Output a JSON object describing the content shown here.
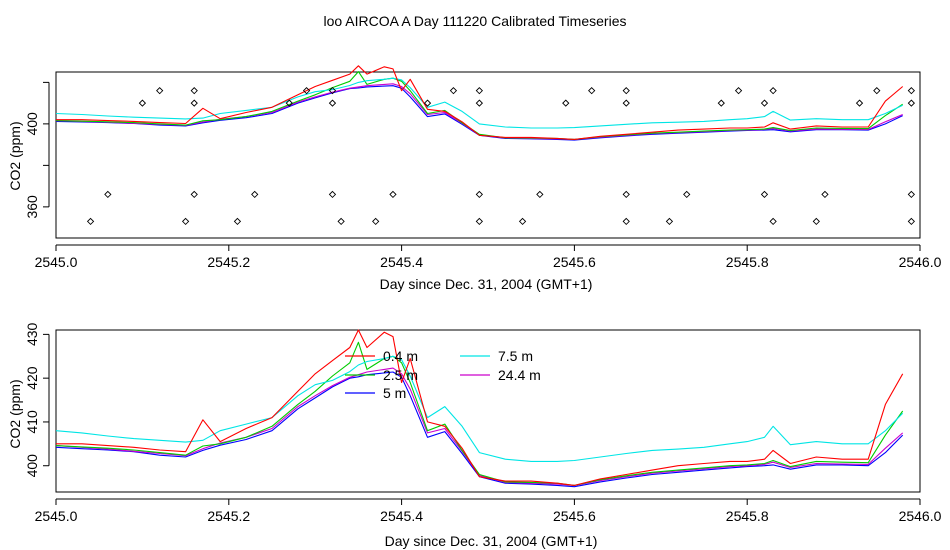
{
  "figure_title": "loo AIRCOA A  Day 111220  Calibrated Timeseries",
  "colors": {
    "0.4 m": "#ff0000",
    "2.5 m": "#00cc00",
    "5 m": "#0000ff",
    "7.5 m": "#00e5e5",
    "24.4 m": "#cc00cc"
  },
  "chart_data": [
    {
      "type": "line",
      "title": "",
      "xlabel": "Day since Dec. 31, 2004 (GMT+1)",
      "ylabel": "CO2 (ppm)",
      "xlim": [
        2545.0,
        2546.0
      ],
      "ylim": [
        345,
        425
      ],
      "xticks": [
        2545.0,
        2545.2,
        2545.4,
        2545.6,
        2545.8,
        2546.0
      ],
      "xtick_labels": [
        "2545.0",
        "2545.2",
        "2545.4",
        "2545.6",
        "2545.8",
        "2546.0"
      ],
      "yticks": [
        360,
        380,
        400,
        420
      ],
      "ytick_labels": [
        "360",
        "",
        "400",
        ""
      ],
      "legend": "none",
      "grid": false,
      "height_markers": {
        "description": "sampling-height marker points (open diamonds)",
        "rows": [
          {
            "y": 416,
            "x": [
              2545.12,
              2545.16,
              2545.29,
              2545.32,
              2545.46,
              2545.49,
              2545.62,
              2545.66,
              2545.79,
              2545.83,
              2545.95,
              2545.99
            ]
          },
          {
            "y": 410,
            "x": [
              2545.1,
              2545.16,
              2545.27,
              2545.32,
              2545.43,
              2545.49,
              2545.59,
              2545.66,
              2545.77,
              2545.82,
              2545.93,
              2545.99
            ]
          },
          {
            "y": 366,
            "x": [
              2545.06,
              2545.16,
              2545.23,
              2545.32,
              2545.39,
              2545.49,
              2545.56,
              2545.66,
              2545.73,
              2545.82,
              2545.89,
              2545.99
            ]
          },
          {
            "y": 353,
            "x": [
              2545.04,
              2545.15,
              2545.21,
              2545.33,
              2545.37,
              2545.49,
              2545.54,
              2545.66,
              2545.71,
              2545.83,
              2545.88,
              2545.99
            ]
          }
        ]
      }
    },
    {
      "type": "line",
      "title": "",
      "xlabel": "Day since Dec. 31, 2004 (GMT+1)",
      "ylabel": "CO2 (ppm)",
      "xlim": [
        2545.0,
        2546.0
      ],
      "ylim": [
        394,
        431
      ],
      "xticks": [
        2545.0,
        2545.2,
        2545.4,
        2545.6,
        2545.8,
        2546.0
      ],
      "xtick_labels": [
        "2545.0",
        "2545.2",
        "2545.4",
        "2545.6",
        "2545.8",
        "2546.0"
      ],
      "yticks": [
        400,
        410,
        420,
        430
      ],
      "ytick_labels": [
        "400",
        "410",
        "420",
        "430"
      ],
      "legend": "top-center",
      "grid": false,
      "x": [
        2545.0,
        2545.03,
        2545.06,
        2545.09,
        2545.12,
        2545.15,
        2545.17,
        2545.19,
        2545.22,
        2545.25,
        2545.28,
        2545.3,
        2545.32,
        2545.34,
        2545.35,
        2545.36,
        2545.38,
        2545.39,
        2545.4,
        2545.41,
        2545.43,
        2545.45,
        2545.47,
        2545.49,
        2545.52,
        2545.55,
        2545.58,
        2545.6,
        2545.63,
        2545.66,
        2545.69,
        2545.72,
        2545.75,
        2545.78,
        2545.8,
        2545.82,
        2545.83,
        2545.85,
        2545.88,
        2545.91,
        2545.94,
        2545.96,
        2545.98
      ],
      "series": [
        {
          "name": "0.4 m",
          "values": [
            405,
            405,
            404.6,
            404.2,
            403.6,
            403.2,
            410.5,
            405.5,
            408.5,
            411,
            417,
            421,
            424,
            427,
            431,
            427,
            430.5,
            429.5,
            419,
            424.5,
            410,
            409,
            404,
            397.5,
            396.5,
            396.5,
            396,
            395.5,
            397,
            398,
            399,
            400,
            400.5,
            401,
            401,
            401.5,
            403.5,
            400.5,
            402,
            401.5,
            401.5,
            414,
            421
          ]
        },
        {
          "name": "2.5 m",
          "values": [
            404.6,
            404.3,
            404,
            403.6,
            403,
            402.4,
            404.5,
            405,
            406.5,
            409,
            414,
            417,
            420.5,
            423.5,
            428.2,
            422,
            424.5,
            425,
            423.5,
            419,
            408,
            409.5,
            403.5,
            398,
            396.3,
            396.2,
            396,
            395.5,
            396.8,
            397.7,
            398.5,
            399,
            399.5,
            400,
            400.2,
            400.5,
            401.2,
            399.8,
            401,
            400.8,
            400.7,
            407,
            412.5
          ]
        },
        {
          "name": "5 m",
          "values": [
            404.2,
            403.9,
            403.6,
            403.2,
            402.4,
            402,
            403.5,
            404.7,
            406,
            408,
            413,
            415.5,
            418,
            420,
            420.3,
            420.8,
            421.2,
            421.4,
            420.2,
            416,
            406.5,
            407.8,
            402.8,
            397.5,
            396,
            395.8,
            395.5,
            395.2,
            396.3,
            397.2,
            398,
            398.5,
            399,
            399.5,
            399.8,
            400,
            400.2,
            399.2,
            400.2,
            400.2,
            400,
            403,
            407
          ]
        },
        {
          "name": "7.5 m",
          "values": [
            408,
            407.5,
            406.8,
            406.2,
            405.8,
            405.4,
            405.8,
            408,
            409.5,
            411,
            416,
            418.5,
            419.5,
            421.5,
            423,
            423.8,
            424.5,
            425,
            424.2,
            420.5,
            411,
            413.5,
            409,
            403,
            401.5,
            401,
            401,
            401.2,
            402,
            402.8,
            403.5,
            403.8,
            404.2,
            405,
            405.5,
            406.5,
            409,
            404.8,
            405.5,
            405,
            405,
            408,
            412
          ]
        },
        {
          "name": "24.4 m",
          "values": [
            404.6,
            404.2,
            403.8,
            403.3,
            402.8,
            402.3,
            403.9,
            405.2,
            406.5,
            408.5,
            413.5,
            416,
            418.3,
            420.2,
            420.8,
            421.4,
            422,
            422.3,
            421,
            417.5,
            407.5,
            408.5,
            403.3,
            397.8,
            396.2,
            396,
            395.8,
            395.5,
            396.6,
            397.5,
            398.3,
            398.8,
            399.3,
            399.8,
            400,
            400.3,
            400.8,
            399.6,
            400.5,
            400.4,
            400.3,
            404,
            407.5
          ]
        }
      ]
    }
  ]
}
